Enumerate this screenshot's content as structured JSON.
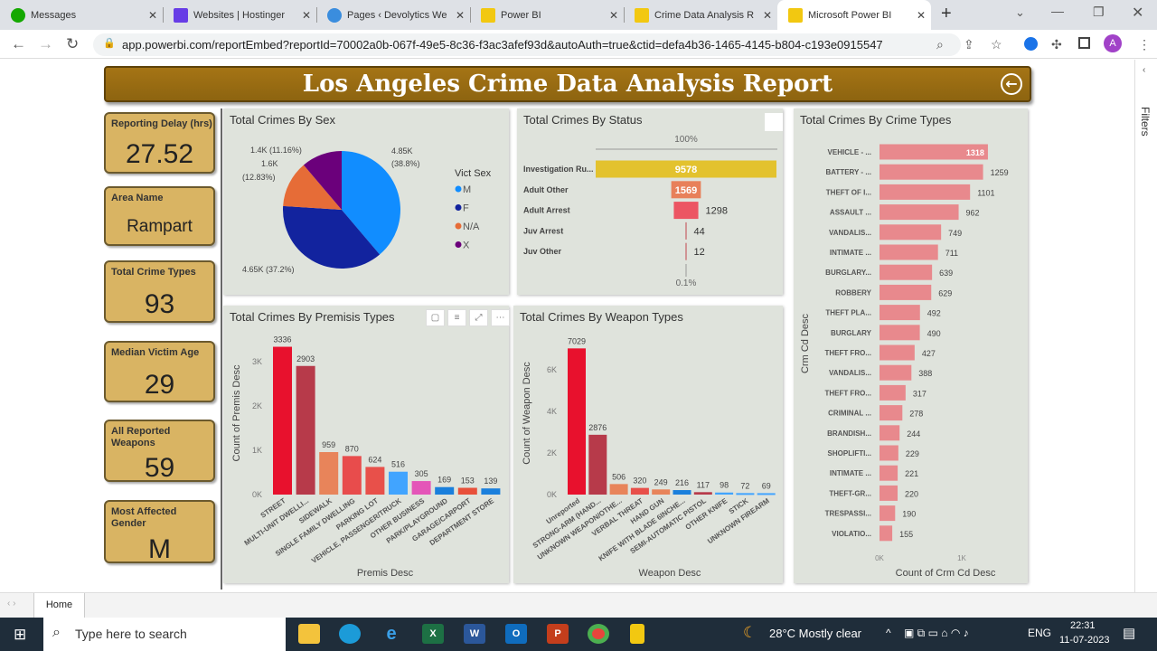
{
  "browser": {
    "tabs": [
      {
        "label": "Messages",
        "icon": "upwork-icon",
        "color": "#14a800"
      },
      {
        "label": "Websites | Hostinger",
        "icon": "hostinger-icon",
        "color": "#673de6"
      },
      {
        "label": "Pages ‹ Devolytics We",
        "icon": "wordpress-icon",
        "color": "#3a8dde"
      },
      {
        "label": "Power BI",
        "icon": "powerbi-icon",
        "color": "#f2c811"
      },
      {
        "label": "Crime Data Analysis R",
        "icon": "powerbi-icon",
        "color": "#f2c811"
      },
      {
        "label": "Microsoft Power BI",
        "icon": "powerbi-icon",
        "color": "#f2c811"
      }
    ],
    "url": "app.powerbi.com/reportEmbed?reportId=70002a0b-067f-49e5-8c36-f3ac3afef93d&autoAuth=true&ctid=defa4b36-1465-4145-b804-c193e0915547",
    "profile": "A"
  },
  "report": {
    "title": "Los Angeles Crime Data Analysis Report",
    "kpis": [
      {
        "label": "Reporting Delay (hrs)",
        "value": "27.52"
      },
      {
        "label": "Area Name",
        "value": "Rampart"
      },
      {
        "label": "Total Crime Types",
        "value": "93"
      },
      {
        "label": "Median Victim Age",
        "value": "29"
      },
      {
        "label": "All Reported Weapons",
        "value": "59"
      },
      {
        "label": "Most Affected Gender",
        "value": "M"
      }
    ],
    "filters_label": "Filters",
    "page_tab": "Home"
  },
  "chart_data": [
    {
      "id": "sex",
      "type": "pie",
      "title": "Total Crimes By Sex",
      "legend_title": "Vict Sex",
      "legend_position": "right",
      "categories": [
        "M",
        "F",
        "N/A",
        "X"
      ],
      "values": [
        4850,
        4650,
        1600,
        1400
      ],
      "percents": [
        38.8,
        37.2,
        12.83,
        11.16
      ],
      "colors": [
        "#118DFF",
        "#12239E",
        "#E66C37",
        "#6B007B"
      ],
      "data_labels": {
        "m": [
          "4.85K",
          "(38.8%)"
        ],
        "f": "4.65K (37.2%)",
        "na": [
          "1.6K",
          "(12.83%)"
        ],
        "x": "1.4K (11.16%)"
      }
    },
    {
      "id": "status",
      "type": "funnel",
      "title": "Total Crimes By Status",
      "top_label": "100%",
      "bottom_label": "0.1%",
      "categories": [
        "Investigation Ru...",
        "Adult Other",
        "Adult Arrest",
        "Juv Arrest",
        "Juv Other"
      ],
      "values": [
        9578,
        1569,
        1298,
        44,
        12
      ],
      "colors": [
        "#E3C22E",
        "#E8805A",
        "#EC5563",
        "#C0464E",
        "#C0464E"
      ]
    },
    {
      "id": "premis",
      "type": "bar",
      "title": "Total Crimes By Premisis Types",
      "xlabel": "Premis Desc",
      "ylabel": "Count of Premis Desc",
      "ylim": [
        0,
        3400
      ],
      "yticks": [
        "0K",
        "1K",
        "2K",
        "3K"
      ],
      "categories": [
        "STREET",
        "MULTI-UNIT DWELLI...",
        "SIDEWALK",
        "SINGLE FAMILY DWELLING",
        "PARKING LOT",
        "VEHICLE, PASSENGER/TRUCK",
        "OTHER BUSINESS",
        "PARK/PLAYGROUND",
        "GARAGE/CARPORT",
        "DEPARTMENT STORE"
      ],
      "values": [
        3336,
        2903,
        959,
        870,
        624,
        516,
        305,
        169,
        153,
        139
      ],
      "colors": [
        "#E8112D",
        "#B73A4A",
        "#E8845A",
        "#E84C4C",
        "#E8504A",
        "#41A4FF",
        "#E455B8",
        "#1A7FDC",
        "#E8503A",
        "#1A7FDC"
      ]
    },
    {
      "id": "weapon",
      "type": "bar",
      "title": "Total Crimes By Weapon Types",
      "xlabel": "Weapon Desc",
      "ylabel": "Count of Weapon Desc",
      "ylim": [
        0,
        7200
      ],
      "yticks": [
        "0K",
        "2K",
        "4K",
        "6K"
      ],
      "categories": [
        "Unreported",
        "STRONG-ARM (HAND...",
        "UNKNOWN WEAPON/OTHE...",
        "VERBAL THREAT",
        "HAND GUN",
        "KNIFE WITH BLADE 6INCHE...",
        "SEMI-AUTOMATIC PISTOL",
        "OTHER KNIFE",
        "STICK",
        "UNKNOWN FIREARM"
      ],
      "values": [
        7029,
        2876,
        506,
        320,
        249,
        216,
        117,
        98,
        72,
        69
      ],
      "colors": [
        "#E8112D",
        "#B73A4A",
        "#E8845A",
        "#E8504A",
        "#E8845A",
        "#1A7FDC",
        "#B73A4A",
        "#41A4FF",
        "#41A4FF",
        "#41A4FF"
      ]
    },
    {
      "id": "crime",
      "type": "hbar",
      "title": "Total Crimes By Crime Types",
      "xlabel": "Count of Crm Cd Desc",
      "ylabel": "Crm Cd Desc",
      "xticks": [
        "0K",
        "1K"
      ],
      "categories": [
        "VEHICLE - ...",
        "BATTERY - ...",
        "THEFT OF I...",
        "ASSAULT ...",
        "VANDALIS...",
        "INTIMATE ...",
        "BURGLARY...",
        "ROBBERY",
        "THEFT PLA...",
        "BURGLARY",
        "THEFT FRO...",
        "VANDALIS...",
        "THEFT FRO...",
        "CRIMINAL ...",
        "BRANDISH...",
        "SHOPLIFTI...",
        "INTIMATE ...",
        "THEFT-GR...",
        "TRESPASSI...",
        "VIOLATIO..."
      ],
      "values": [
        1318,
        1259,
        1101,
        962,
        749,
        711,
        639,
        629,
        492,
        490,
        427,
        388,
        317,
        278,
        244,
        229,
        221,
        220,
        190,
        155
      ],
      "color": "#E8898D"
    }
  ],
  "taskbar": {
    "search_placeholder": "Type here to search",
    "weather": "28°C  Mostly clear",
    "lang": "ENG",
    "time": "22:31",
    "date": "11-07-2023"
  }
}
